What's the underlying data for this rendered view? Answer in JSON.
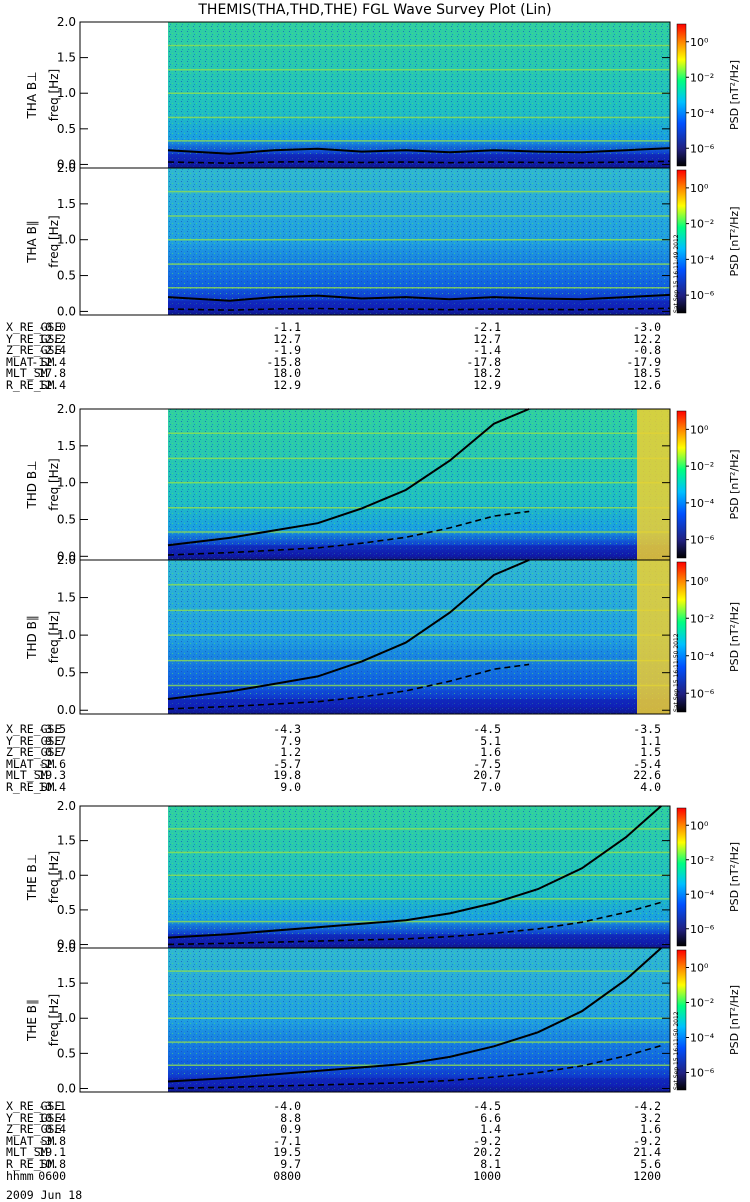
{
  "title": "THEMIS(THA,THD,THE) FGL Wave Survey Plot (Lin)",
  "colorbar": {
    "label": "PSD [nT²/Hz]",
    "ticks": [
      "10⁰",
      "10⁻²",
      "10⁻⁴",
      "10⁻⁶"
    ],
    "colors": [
      "#000000",
      "#2020a0",
      "#0050ff",
      "#00c0ff",
      "#00ff80",
      "#ffff00",
      "#ff8000",
      "#ff0000"
    ]
  },
  "panels": [
    {
      "id": "tha-bperp",
      "ylabel": "THA B⊥",
      "stamp": ""
    },
    {
      "id": "tha-bpar",
      "ylabel": "THA B∥",
      "stamp": "Sat Sep 15 16:11:49 2012"
    },
    {
      "id": "thd-bperp",
      "ylabel": "THD B⊥",
      "stamp": ""
    },
    {
      "id": "thd-bpar",
      "ylabel": "THD B∥",
      "stamp": "Sat Sep 15 16:11:50 2012"
    },
    {
      "id": "the-bperp",
      "ylabel": "THE B⊥",
      "stamp": ""
    },
    {
      "id": "the-bpar",
      "ylabel": "THE B∥",
      "stamp": "Sat Sep 15 16:11:50 2012"
    }
  ],
  "y_units_label": "freq [Hz]",
  "ephemeris": [
    {
      "probe": "THA",
      "rows": [
        {
          "label": "X_RE_GSE",
          "values": [
            "-0.0",
            "-1.1",
            "-2.1",
            "-3.0"
          ]
        },
        {
          "label": "Y_RE_GSE",
          "values": [
            "12.2",
            "12.7",
            "12.7",
            "12.2"
          ]
        },
        {
          "label": "Z_RE_GSE",
          "values": [
            "-2.4",
            "-1.9",
            "-1.4",
            "-0.8"
          ]
        },
        {
          "label": "MLAT_SM",
          "values": [
            "-12.4",
            "-15.8",
            "-17.8",
            "-17.9"
          ]
        },
        {
          "label": "MLT_SM",
          "values": [
            "17.8",
            "18.0",
            "18.2",
            "18.5"
          ]
        },
        {
          "label": "R_RE_SM",
          "values": [
            "12.4",
            "12.9",
            "12.9",
            "12.6"
          ]
        }
      ]
    },
    {
      "probe": "THD",
      "rows": [
        {
          "label": "X_RE_GSE",
          "values": [
            "-3.5",
            "-4.3",
            "-4.5",
            "-3.5"
          ]
        },
        {
          "label": "Y_RE_GSE",
          "values": [
            "9.7",
            "7.9",
            "5.1",
            "1.1"
          ]
        },
        {
          "label": "Z_RE_GSE",
          "values": [
            "0.7",
            "1.2",
            "1.6",
            "1.5"
          ]
        },
        {
          "label": "MLAT_SM",
          "values": [
            "-2.6",
            "-5.7",
            "-7.5",
            "-5.4"
          ]
        },
        {
          "label": "MLT_SM",
          "values": [
            "19.3",
            "19.8",
            "20.7",
            "22.6"
          ]
        },
        {
          "label": "R_RE_SM",
          "values": [
            "10.4",
            "9.0",
            "7.0",
            "4.0"
          ]
        }
      ]
    },
    {
      "probe": "THE",
      "rows": [
        {
          "label": "X_RE_GSE",
          "values": [
            "-3.1",
            "-4.0",
            "-4.5",
            "-4.2"
          ]
        },
        {
          "label": "Y_RE_GSE",
          "values": [
            "10.4",
            "8.8",
            "6.6",
            "3.2"
          ]
        },
        {
          "label": "Z_RE_GSE",
          "values": [
            "0.4",
            "0.9",
            "1.4",
            "1.6"
          ]
        },
        {
          "label": "MLAT_SM",
          "values": [
            "-3.8",
            "-7.1",
            "-9.2",
            "-9.2"
          ]
        },
        {
          "label": "MLT_SM",
          "values": [
            "19.1",
            "19.5",
            "20.2",
            "21.4"
          ]
        },
        {
          "label": "R_RE_SM",
          "values": [
            "10.8",
            "9.7",
            "8.1",
            "5.6"
          ]
        },
        {
          "label": "hhmm",
          "values": [
            "0600",
            "0800",
            "1000",
            "1200"
          ]
        }
      ]
    }
  ],
  "date": "2009 Jun 18",
  "chart_data": {
    "type": "heatmap",
    "title": "THEMIS(THA,THD,THE) FGL Wave Survey Plot (Lin)",
    "ylabel": "freq [Hz]",
    "ylim": [
      0,
      2.0
    ],
    "yticks": [
      "0.0",
      "0.5",
      "1.0",
      "1.5",
      "2.0"
    ],
    "xlim": [
      "0600",
      "1200"
    ],
    "x_ticks": [
      "0600",
      "0800",
      "1000",
      "1200"
    ],
    "colorbar_label": "PSD [nT²/Hz]",
    "colorbar_range_log10": [
      -7,
      1
    ],
    "colorbar_ticks": [
      "10⁰",
      "10⁻²",
      "10⁻⁴",
      "10⁻⁶"
    ],
    "series": [
      {
        "panel": "THA",
        "x": [
          6.3,
          7.0,
          7.5,
          8.0,
          8.5,
          9.0,
          9.5,
          10.0,
          10.5,
          11.0,
          11.5,
          12.0
        ],
        "y": [
          0.2,
          0.15,
          0.2,
          0.22,
          0.18,
          0.2,
          0.17,
          0.2,
          0.18,
          0.17,
          0.2,
          0.23
        ]
      },
      {
        "panel": "THD",
        "x": [
          6.3,
          7.0,
          7.5,
          8.0,
          8.5,
          9.0,
          9.5,
          10.0,
          10.4
        ],
        "y": [
          0.15,
          0.25,
          0.35,
          0.45,
          0.65,
          0.9,
          1.3,
          1.8,
          2.0
        ]
      },
      {
        "panel": "THE",
        "x": [
          6.3,
          7.0,
          8.0,
          9.0,
          9.5,
          10.0,
          10.5,
          11.0,
          11.5,
          11.9
        ],
        "y": [
          0.1,
          0.15,
          0.25,
          0.35,
          0.45,
          0.6,
          0.8,
          1.1,
          1.55,
          2.0
        ]
      }
    ]
  }
}
